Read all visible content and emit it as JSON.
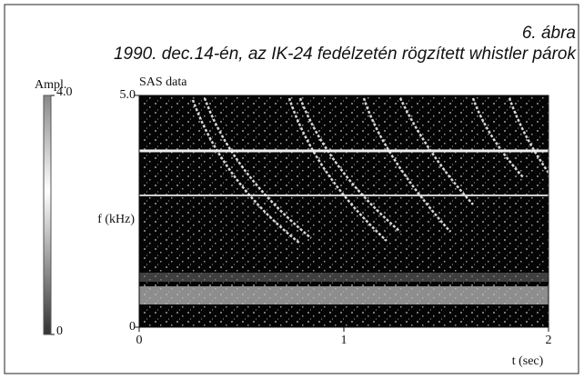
{
  "figure_label": "6. ábra",
  "caption": "1990. dec.14-én, az IK-24 fedélzetén rögzített whistler párok",
  "chart_data": {
    "type": "spectrogram",
    "title": "SAS data",
    "x_label": "t (sec)",
    "y_label": "f (kHz)",
    "xlim": [
      0,
      2
    ],
    "xticks": [
      0,
      1,
      2
    ],
    "ylim": [
      0,
      5
    ],
    "yticks": [
      0,
      {
        "value": 5,
        "label": "5.0"
      }
    ],
    "colorbar": {
      "label": "Ampl.",
      "lim": [
        0,
        4
      ],
      "ticks": [
        0,
        {
          "value": 4,
          "label": "4.0"
        }
      ]
    }
  }
}
